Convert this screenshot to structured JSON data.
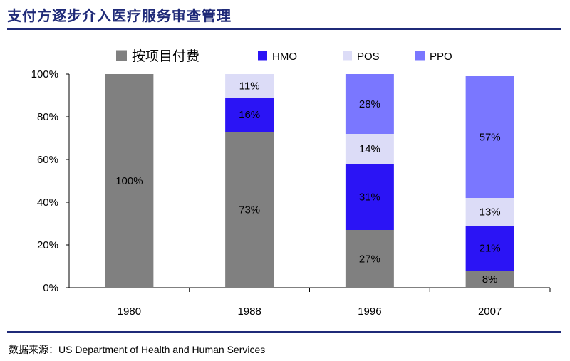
{
  "title": "支付方逐步介入医疗服务审查管理",
  "source": {
    "label": "数据来源：",
    "text": "US Department of Health and Human Services"
  },
  "chart_data": {
    "type": "bar",
    "stacked": true,
    "categories": [
      "1980",
      "1988",
      "1996",
      "2007"
    ],
    "series": [
      {
        "name": "按项目付费",
        "color": "#808080",
        "values": [
          100,
          73,
          27,
          8
        ],
        "labels": [
          "100%",
          "73%",
          "27%",
          "8%"
        ]
      },
      {
        "name": "HMO",
        "color": "#2b14f5",
        "values": [
          0,
          16,
          31,
          21
        ],
        "labels": [
          "",
          "16%",
          "31%",
          "21%"
        ]
      },
      {
        "name": "POS",
        "color": "#dcdcf7",
        "values": [
          0,
          11,
          14,
          13
        ],
        "labels": [
          "",
          "11%",
          "14%",
          "13%"
        ]
      },
      {
        "name": "PPO",
        "color": "#7a77ff",
        "values": [
          0,
          0,
          28,
          57
        ],
        "labels": [
          "",
          "",
          "28%",
          "57%"
        ]
      }
    ],
    "ylim": [
      0,
      100
    ],
    "yticks": [
      "0%",
      "20%",
      "40%",
      "60%",
      "80%",
      "100%"
    ],
    "legend_position": "top",
    "grid": false
  }
}
